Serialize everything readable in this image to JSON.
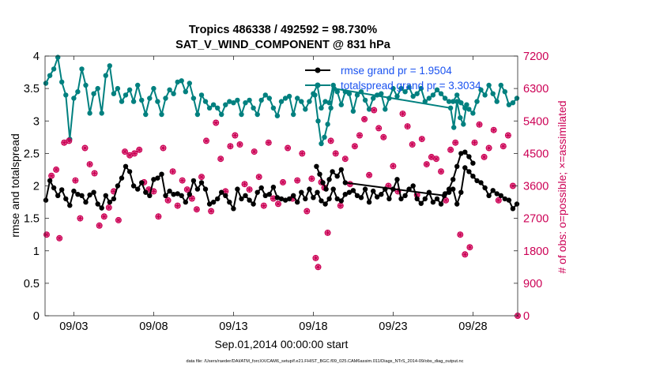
{
  "chart_data": {
    "type": "line",
    "title_line1": "Tropics 486338 / 492592 = 98.730%",
    "title_line2": "SAT_V_WIND_COMPONENT @ 831 hPa",
    "xlabel": "Sep.01,2014 00:00:00 start",
    "ylabel": "rmse and totalspread",
    "ylabel_right": "# of obs: o=possible; ×=assimilated",
    "footer": "data file: /Users/raeder/DAI/ATM_forcXX/CAM6_setup/f.e21.FHIST_BGC.f09_025.CAM6assim.011/Diags_NTrS_2014-09/obs_diag_output.nc",
    "x_range": [
      1.2,
      30.8
    ],
    "ylim": [
      0,
      4
    ],
    "ylim_right": [
      0,
      7200
    ],
    "x_ticks": [
      3,
      8,
      13,
      18,
      23,
      28
    ],
    "x_tick_labels": [
      "09/03",
      "09/08",
      "09/13",
      "09/18",
      "09/23",
      "09/28"
    ],
    "y_ticks": [
      0,
      0.5,
      1,
      1.5,
      2,
      2.5,
      3,
      3.5,
      4
    ],
    "y_tick_labels": [
      "0",
      "0.5",
      "1",
      "1.5",
      "2",
      "2.5",
      "3",
      "3.5",
      "4"
    ],
    "y_right_ticks": [
      0,
      900,
      1800,
      2700,
      3600,
      4500,
      5400,
      6300,
      7200
    ],
    "y_right_tick_labels": [
      "0",
      "900",
      "1800",
      "2700",
      "3600",
      "4500",
      "5400",
      "6300",
      "7200"
    ],
    "legend": {
      "rmse": "rmse grand pr = 1.9504",
      "spread": "totalspread grand pr = 3.3034"
    },
    "colors": {
      "rmse": "#000000",
      "spread": "#00807f",
      "obs": "#cc0055",
      "legend_text": "#1a52f0"
    },
    "x": [
      1.25,
      1.5,
      1.75,
      2.0,
      2.25,
      2.5,
      2.75,
      3.0,
      3.25,
      3.5,
      3.75,
      4.0,
      4.25,
      4.5,
      4.75,
      5.0,
      5.25,
      5.5,
      5.75,
      6.0,
      6.25,
      6.5,
      6.75,
      7.0,
      7.25,
      7.5,
      7.75,
      8.0,
      8.25,
      8.5,
      8.75,
      9.0,
      9.25,
      9.5,
      9.75,
      10.0,
      10.25,
      10.5,
      10.75,
      11.0,
      11.25,
      11.5,
      11.75,
      12.0,
      12.25,
      12.5,
      12.75,
      13.0,
      13.25,
      13.5,
      13.75,
      14.0,
      14.25,
      14.5,
      14.75,
      15.0,
      15.25,
      15.5,
      15.75,
      16.0,
      16.25,
      16.5,
      16.75,
      17.0,
      17.25,
      17.5,
      17.75,
      18.0,
      18.25,
      18.5,
      18.75,
      19.0,
      19.25,
      19.5,
      19.75,
      20.0,
      20.25,
      20.5,
      20.75,
      21.0,
      21.25,
      21.5,
      21.75,
      22.0,
      22.25,
      22.5,
      22.75,
      23.0,
      23.25,
      23.5,
      23.75,
      24.0,
      24.25,
      24.5,
      24.75,
      25.0,
      25.25,
      25.5,
      25.75,
      26.0,
      26.25,
      26.5,
      26.75,
      27.0,
      27.25,
      27.5,
      27.75,
      28.0,
      28.25,
      28.5,
      28.75,
      29.0,
      29.25,
      29.5,
      29.75,
      30.0,
      30.25,
      30.5,
      30.75
    ],
    "series": [
      {
        "name": "rmse",
        "values": [
          1.78,
          2.08,
          1.97,
          1.85,
          1.94,
          1.8,
          1.7,
          1.92,
          1.87,
          1.85,
          1.75,
          1.86,
          1.9,
          1.72,
          1.66,
          1.85,
          1.75,
          1.8,
          2.0,
          2.12,
          2.3,
          2.22,
          2.0,
          1.95,
          2.05,
          1.9,
          1.85,
          2.1,
          2.12,
          2.18,
          1.85,
          1.92,
          1.87,
          1.88,
          1.85,
          1.75,
          1.87,
          2.08,
          1.95,
          2.05,
          1.95,
          1.72,
          1.75,
          1.8,
          1.9,
          1.85,
          1.75,
          1.65,
          1.95,
          1.8,
          1.85,
          1.78,
          1.72,
          1.9,
          1.97,
          1.85,
          1.87,
          1.98,
          1.82,
          1.8,
          1.78,
          1.8,
          1.85,
          1.75,
          1.9,
          1.8,
          1.95,
          1.82,
          1.9,
          1.77,
          1.72,
          1.8,
          1.95,
          1.8,
          1.77,
          1.87,
          1.9,
          1.93,
          1.85,
          1.82,
          1.95,
          1.75,
          1.92,
          1.83,
          1.87,
          1.95,
          1.8,
          1.95,
          2.1,
          1.8,
          1.85,
          1.95,
          2.0,
          1.8,
          1.73,
          1.8,
          1.9,
          1.75,
          1.8,
          1.72,
          1.88,
          1.9,
          1.95,
          1.72,
          1.9,
          2.28,
          2.22,
          2.15,
          2.08,
          2.05,
          1.97,
          1.85,
          1.93,
          1.88,
          1.85,
          1.8,
          1.78,
          1.65,
          1.72
        ],
        "overlay": {
          "x": [
            18.2,
            18.4,
            18.6,
            18.8,
            19.0,
            19.2,
            19.5,
            19.75,
            20.0,
            26.2,
            26.5,
            26.75,
            27.0,
            27.25,
            27.5,
            27.75,
            28.0
          ],
          "values": [
            2.3,
            2.18,
            2.05,
            1.95,
            2.1,
            2.22,
            2.15,
            2.25,
            2.05,
            1.85,
            1.95,
            2.1,
            2.3,
            2.5,
            2.52,
            2.45,
            2.35
          ]
        }
      },
      {
        "name": "totalspread",
        "values": [
          3.58,
          3.7,
          3.8,
          3.98,
          3.6,
          3.4,
          2.72,
          3.35,
          3.45,
          3.8,
          3.55,
          3.12,
          3.42,
          3.5,
          3.12,
          3.7,
          3.85,
          3.42,
          3.5,
          3.3,
          3.4,
          3.48,
          3.3,
          3.55,
          3.32,
          3.1,
          3.35,
          3.5,
          3.3,
          3.1,
          3.35,
          3.48,
          3.42,
          3.6,
          3.62,
          3.45,
          3.58,
          3.35,
          3.1,
          3.4,
          3.3,
          3.2,
          3.25,
          3.2,
          3.1,
          3.25,
          3.3,
          3.28,
          3.32,
          3.1,
          3.28,
          3.32,
          3.2,
          3.1,
          3.32,
          3.4,
          3.35,
          3.2,
          3.08,
          3.3,
          3.35,
          3.38,
          3.1,
          3.35,
          3.3,
          3.18,
          3.3,
          3.42,
          3.55,
          3.2,
          3.3,
          3.28,
          3.55,
          3.45,
          3.25,
          3.45,
          3.42,
          3.15,
          3.4,
          3.45,
          3.32,
          3.18,
          3.35,
          3.4,
          3.42,
          3.18,
          3.35,
          3.5,
          3.38,
          3.5,
          3.45,
          3.52,
          3.38,
          3.42,
          3.5,
          3.3,
          3.35,
          3.4,
          3.48,
          3.42,
          3.35,
          3.3,
          3.3,
          3.4,
          3.28,
          3.2,
          3.18,
          3.12,
          3.3,
          3.48,
          3.4,
          3.55,
          3.42,
          3.3,
          3.55,
          3.45,
          3.25,
          3.28,
          3.35
        ],
        "overlay": {
          "x": [
            18.1,
            18.3,
            18.5,
            18.7,
            18.9,
            19.1,
            19.3,
            26.6,
            26.8,
            27.0,
            27.2,
            27.4,
            27.6
          ],
          "values": [
            3.4,
            3.0,
            2.65,
            2.75,
            2.95,
            3.2,
            3.5,
            3.2,
            2.9,
            3.3,
            3.05,
            2.95,
            3.25
          ]
        }
      }
    ],
    "obs_points": {
      "x": [
        1.3,
        1.6,
        1.9,
        2.1,
        2.4,
        2.7,
        3.1,
        3.4,
        3.7,
        4.0,
        4.3,
        4.6,
        4.9,
        5.2,
        5.5,
        5.8,
        6.2,
        6.5,
        6.8,
        7.1,
        7.4,
        7.7,
        8.0,
        8.3,
        8.6,
        8.9,
        9.2,
        9.5,
        9.8,
        10.1,
        10.4,
        10.7,
        11.0,
        11.3,
        11.6,
        11.9,
        12.2,
        12.5,
        12.8,
        13.1,
        13.4,
        13.7,
        14.0,
        14.3,
        14.6,
        14.9,
        15.2,
        15.5,
        15.8,
        16.1,
        16.4,
        16.7,
        17.0,
        17.3,
        17.6,
        17.9,
        18.15,
        18.3,
        18.5,
        18.7,
        18.9,
        19.1,
        19.4,
        19.7,
        20.0,
        20.3,
        20.6,
        20.9,
        21.2,
        21.5,
        21.8,
        22.1,
        22.4,
        22.7,
        23.0,
        23.3,
        23.6,
        23.9,
        24.2,
        24.5,
        24.8,
        25.1,
        25.4,
        25.7,
        26.0,
        26.3,
        26.6,
        26.9,
        27.2,
        27.5,
        27.8,
        28.1,
        28.4,
        28.7,
        29.0,
        29.3,
        29.6,
        29.9,
        30.2,
        30.5,
        30.8
      ],
      "values": [
        2250,
        3880,
        4050,
        2150,
        4800,
        4850,
        3750,
        2700,
        4650,
        4200,
        3950,
        2500,
        2750,
        3000,
        3450,
        2650,
        4550,
        4450,
        4500,
        4600,
        3700,
        3500,
        3450,
        2750,
        4650,
        3200,
        4000,
        3050,
        3750,
        3500,
        3250,
        2950,
        3850,
        4850,
        2900,
        5350,
        4350,
        3450,
        4700,
        5000,
        4750,
        3650,
        3500,
        4550,
        3850,
        3050,
        4800,
        3250,
        3100,
        3700,
        4650,
        3250,
        3750,
        4500,
        2900,
        3800,
        1600,
        1350,
        3700,
        3550,
        2300,
        4850,
        4500,
        3050,
        4350,
        3650,
        4700,
        5000,
        5450,
        3900,
        5700,
        5200,
        4950,
        3600,
        4150,
        3450,
        5600,
        5250,
        4750,
        3350,
        4900,
        4200,
        4400,
        4350,
        4000,
        3200,
        4600,
        4800,
        2250,
        1700,
        1900,
        4800,
        5300,
        4400,
        4650,
        5150,
        3200,
        4700,
        5000,
        3600,
        0
      ]
    }
  }
}
